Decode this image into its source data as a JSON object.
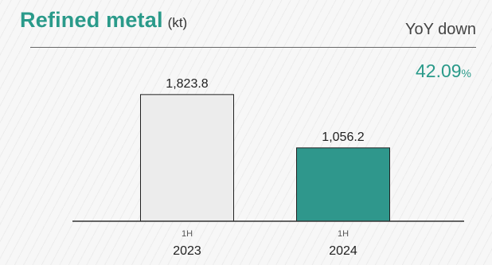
{
  "header": {
    "title": "Refined metal",
    "unit": "(kt)",
    "yoy_label": "YoY down",
    "yoy_value": "42.09",
    "yoy_unit": "%"
  },
  "colors": {
    "accent": "#2a9a8a",
    "bar_2023": "#ececec",
    "bar_2024": "#2f978c"
  },
  "chart_data": {
    "type": "bar",
    "categories": [
      {
        "period": "1H",
        "year": "2023"
      },
      {
        "period": "1H",
        "year": "2024"
      }
    ],
    "values": [
      1823.8,
      1056.2
    ],
    "value_labels": [
      "1,823.8",
      "1,056.2"
    ],
    "ylim": [
      0,
      2200
    ],
    "grid": false
  }
}
